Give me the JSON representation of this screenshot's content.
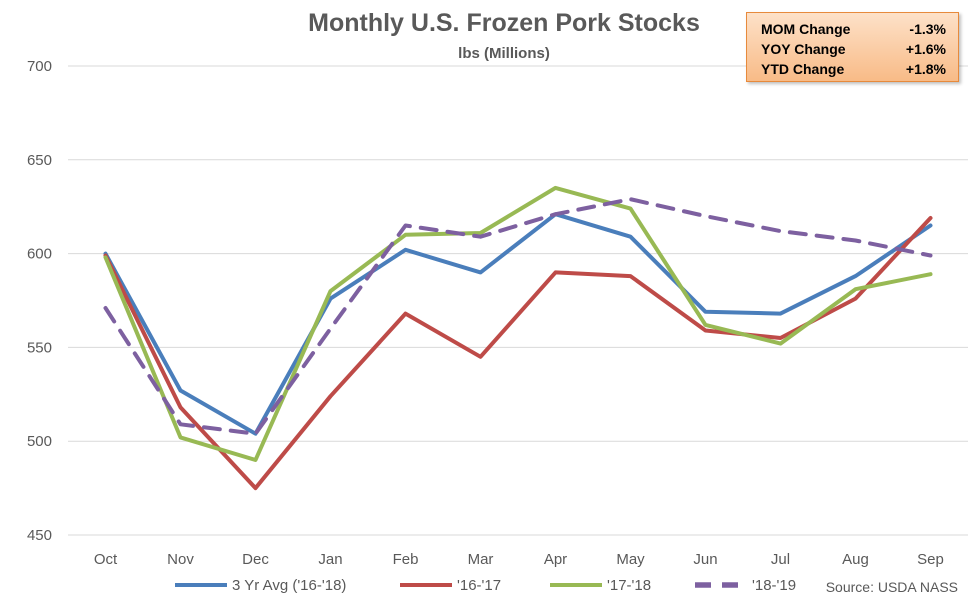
{
  "chart_data": {
    "type": "line",
    "title": "Monthly U.S. Frozen Pork Stocks",
    "subtitle": "lbs (Millions)",
    "categories": [
      "Oct",
      "Nov",
      "Dec",
      "Jan",
      "Feb",
      "Mar",
      "Apr",
      "May",
      "Jun",
      "Jul",
      "Aug",
      "Sep"
    ],
    "ylim": [
      450,
      700
    ],
    "yticks": [
      450,
      500,
      550,
      600,
      650,
      700
    ],
    "grid": true,
    "legend_position": "bottom",
    "series": [
      {
        "name": "3 Yr Avg ('16-'18)",
        "color": "#4a7ebb",
        "dash": false,
        "values": [
          600,
          527,
          504,
          576,
          602,
          590,
          621,
          609,
          569,
          568,
          588,
          615
        ]
      },
      {
        "name": "'16-'17",
        "color": "#be4b48",
        "dash": false,
        "values": [
          599,
          518,
          475,
          524,
          568,
          545,
          590,
          588,
          559,
          555,
          576,
          619
        ]
      },
      {
        "name": "'17-'18",
        "color": "#98b954",
        "dash": false,
        "values": [
          598,
          502,
          490,
          580,
          610,
          611,
          635,
          624,
          562,
          552,
          581,
          589
        ]
      },
      {
        "name": "'18-'19",
        "color": "#7d60a0",
        "dash": true,
        "values": [
          571,
          509,
          504,
          560,
          615,
          609,
          621,
          629,
          620,
          612,
          607,
          599
        ]
      }
    ],
    "source": "Source: USDA NASS"
  },
  "stats_box": {
    "rows": [
      {
        "label": "MOM Change",
        "value": "-1.3%"
      },
      {
        "label": "YOY Change",
        "value": "+1.6%"
      },
      {
        "label": "YTD Change",
        "value": "+1.8%"
      }
    ]
  }
}
